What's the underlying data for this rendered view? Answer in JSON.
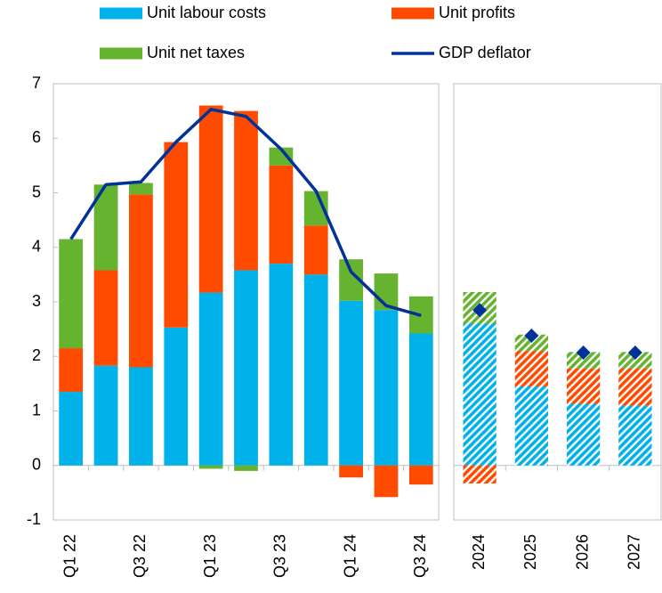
{
  "chart_data": [
    {
      "type": "bar",
      "stacked": true,
      "categories": [
        "Q1 22",
        null,
        "Q3 22",
        null,
        "Q1 23",
        null,
        "Q3 23",
        null,
        "Q1 24",
        null,
        "Q3 24"
      ],
      "series": [
        {
          "name": "Unit labour costs",
          "color": "#00b1ea",
          "values": [
            1.35,
            1.83,
            1.8,
            2.53,
            3.17,
            3.58,
            3.7,
            3.5,
            3.02,
            2.85,
            2.42
          ]
        },
        {
          "name": "Unit profits",
          "color": "#ff4b00",
          "values": [
            0.8,
            1.75,
            3.17,
            3.4,
            3.43,
            2.92,
            1.8,
            0.9,
            -0.22,
            -0.58,
            -0.35
          ]
        },
        {
          "name": "Unit net taxes",
          "color": "#65b32e",
          "values": [
            2.0,
            1.57,
            0.21,
            0.0,
            -0.06,
            -0.1,
            0.33,
            0.63,
            0.76,
            0.67,
            0.68
          ]
        },
        {
          "name": "GDP deflator",
          "type": "line",
          "color": "#003299",
          "values": [
            4.15,
            5.15,
            5.2,
            5.93,
            6.53,
            6.4,
            5.8,
            5.03,
            3.55,
            2.93,
            2.75
          ]
        }
      ],
      "ylim": [
        -1,
        7
      ],
      "yticks": [
        -1,
        0,
        1,
        2,
        3,
        4,
        5,
        6,
        7
      ]
    },
    {
      "type": "bar",
      "stacked": true,
      "hatched": true,
      "categories": [
        "2024",
        "2025",
        "2026",
        "2027"
      ],
      "series": [
        {
          "color": "#00b1ea",
          "values": [
            2.6,
            1.45,
            1.13,
            1.1
          ]
        },
        {
          "color": "#ff4b00",
          "values": [
            -0.33,
            0.65,
            0.65,
            0.68
          ]
        },
        {
          "color": "#65b32e",
          "values": [
            0.58,
            0.3,
            0.3,
            0.3
          ]
        },
        {
          "type": "scatter",
          "marker": "diamond",
          "color": "#003299",
          "values": [
            2.85,
            2.38,
            2.07,
            2.07
          ]
        }
      ],
      "ylim": [
        -1,
        7
      ]
    }
  ]
}
